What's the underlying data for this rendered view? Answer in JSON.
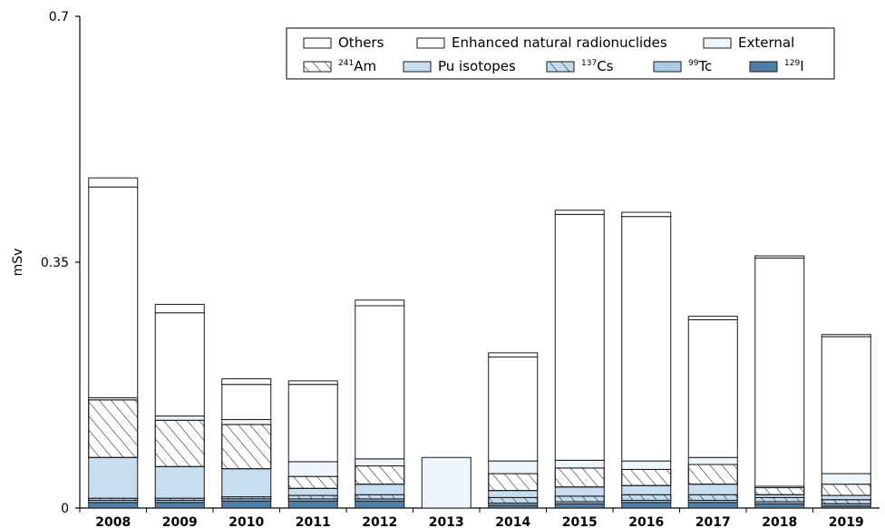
{
  "chart_data": {
    "type": "bar",
    "stacked": true,
    "title": "",
    "xlabel": "",
    "ylabel": "mSv",
    "ylim": [
      0,
      0.7
    ],
    "yticks": [
      0,
      0.35,
      0.7
    ],
    "ytick_labels": [
      "0",
      "0.35",
      "0.7"
    ],
    "grid": false,
    "legend_position": "top-right",
    "categories": [
      "2008",
      "2009",
      "2010",
      "2011",
      "2012",
      "2013",
      "2014",
      "2015",
      "2016",
      "2017",
      "2018",
      "2019"
    ],
    "series": [
      {
        "key": "i129",
        "name": "129I",
        "name_sup": "129",
        "name_main": "I",
        "color": "#4f7fa6",
        "pattern": "solid",
        "values": [
          0.008,
          0.008,
          0.01,
          0.01,
          0.01,
          0,
          0.004,
          0.006,
          0.008,
          0.008,
          0.006,
          0.003
        ]
      },
      {
        "key": "tc99",
        "name": "99Tc",
        "name_sup": "99",
        "name_main": "Tc",
        "color": "#a9c9e6",
        "pattern": "solid",
        "values": [
          0.003,
          0.003,
          0.003,
          0.003,
          0.003,
          0,
          0.003,
          0.003,
          0.003,
          0.003,
          0.003,
          0.003
        ]
      },
      {
        "key": "cs137",
        "name": "137Cs",
        "name_sup": "137",
        "name_main": "Cs",
        "color": "#c3dbef",
        "pattern": "hatch",
        "values": [
          0.003,
          0.003,
          0.003,
          0.005,
          0.006,
          0,
          0.008,
          0.008,
          0.008,
          0.008,
          0.006,
          0.006
        ]
      },
      {
        "key": "pu",
        "name": "Pu isotopes",
        "name_sup": "",
        "name_main": "Pu isotopes",
        "color": "#c9ddf1",
        "pattern": "solid",
        "values": [
          0.058,
          0.045,
          0.04,
          0.01,
          0.015,
          0,
          0.01,
          0.013,
          0.013,
          0.015,
          0.004,
          0.006
        ]
      },
      {
        "key": "am241",
        "name": "241Am",
        "name_sup": "241",
        "name_main": "Am",
        "color": "#ffffff",
        "pattern": "hatch",
        "values": [
          0.082,
          0.066,
          0.063,
          0.017,
          0.026,
          0,
          0.024,
          0.027,
          0.023,
          0.028,
          0.01,
          0.016
        ]
      },
      {
        "key": "external",
        "name": "External",
        "name_sup": "",
        "name_main": "External",
        "color": "#eef5fc",
        "pattern": "solid",
        "values": [
          0.003,
          0.006,
          0.007,
          0.021,
          0.01,
          0.072,
          0.018,
          0.011,
          0.012,
          0.01,
          0.002,
          0.015
        ]
      },
      {
        "key": "enhanced",
        "name": "Enhanced natural radionuclides",
        "name_sup": "",
        "name_main": "Enhanced natural radionuclides",
        "color": "#ffffff",
        "pattern": "solid",
        "values": [
          0.3,
          0.147,
          0.05,
          0.11,
          0.218,
          0,
          0.148,
          0.35,
          0.348,
          0.196,
          0.325,
          0.195
        ]
      },
      {
        "key": "others",
        "name": "Others",
        "name_sup": "",
        "name_main": "Others",
        "color": "#ffffff",
        "pattern": "solid",
        "values": [
          0.013,
          0.012,
          0.008,
          0.005,
          0.008,
          0,
          0.006,
          0.006,
          0.006,
          0.005,
          0.003,
          0.003
        ]
      }
    ]
  }
}
